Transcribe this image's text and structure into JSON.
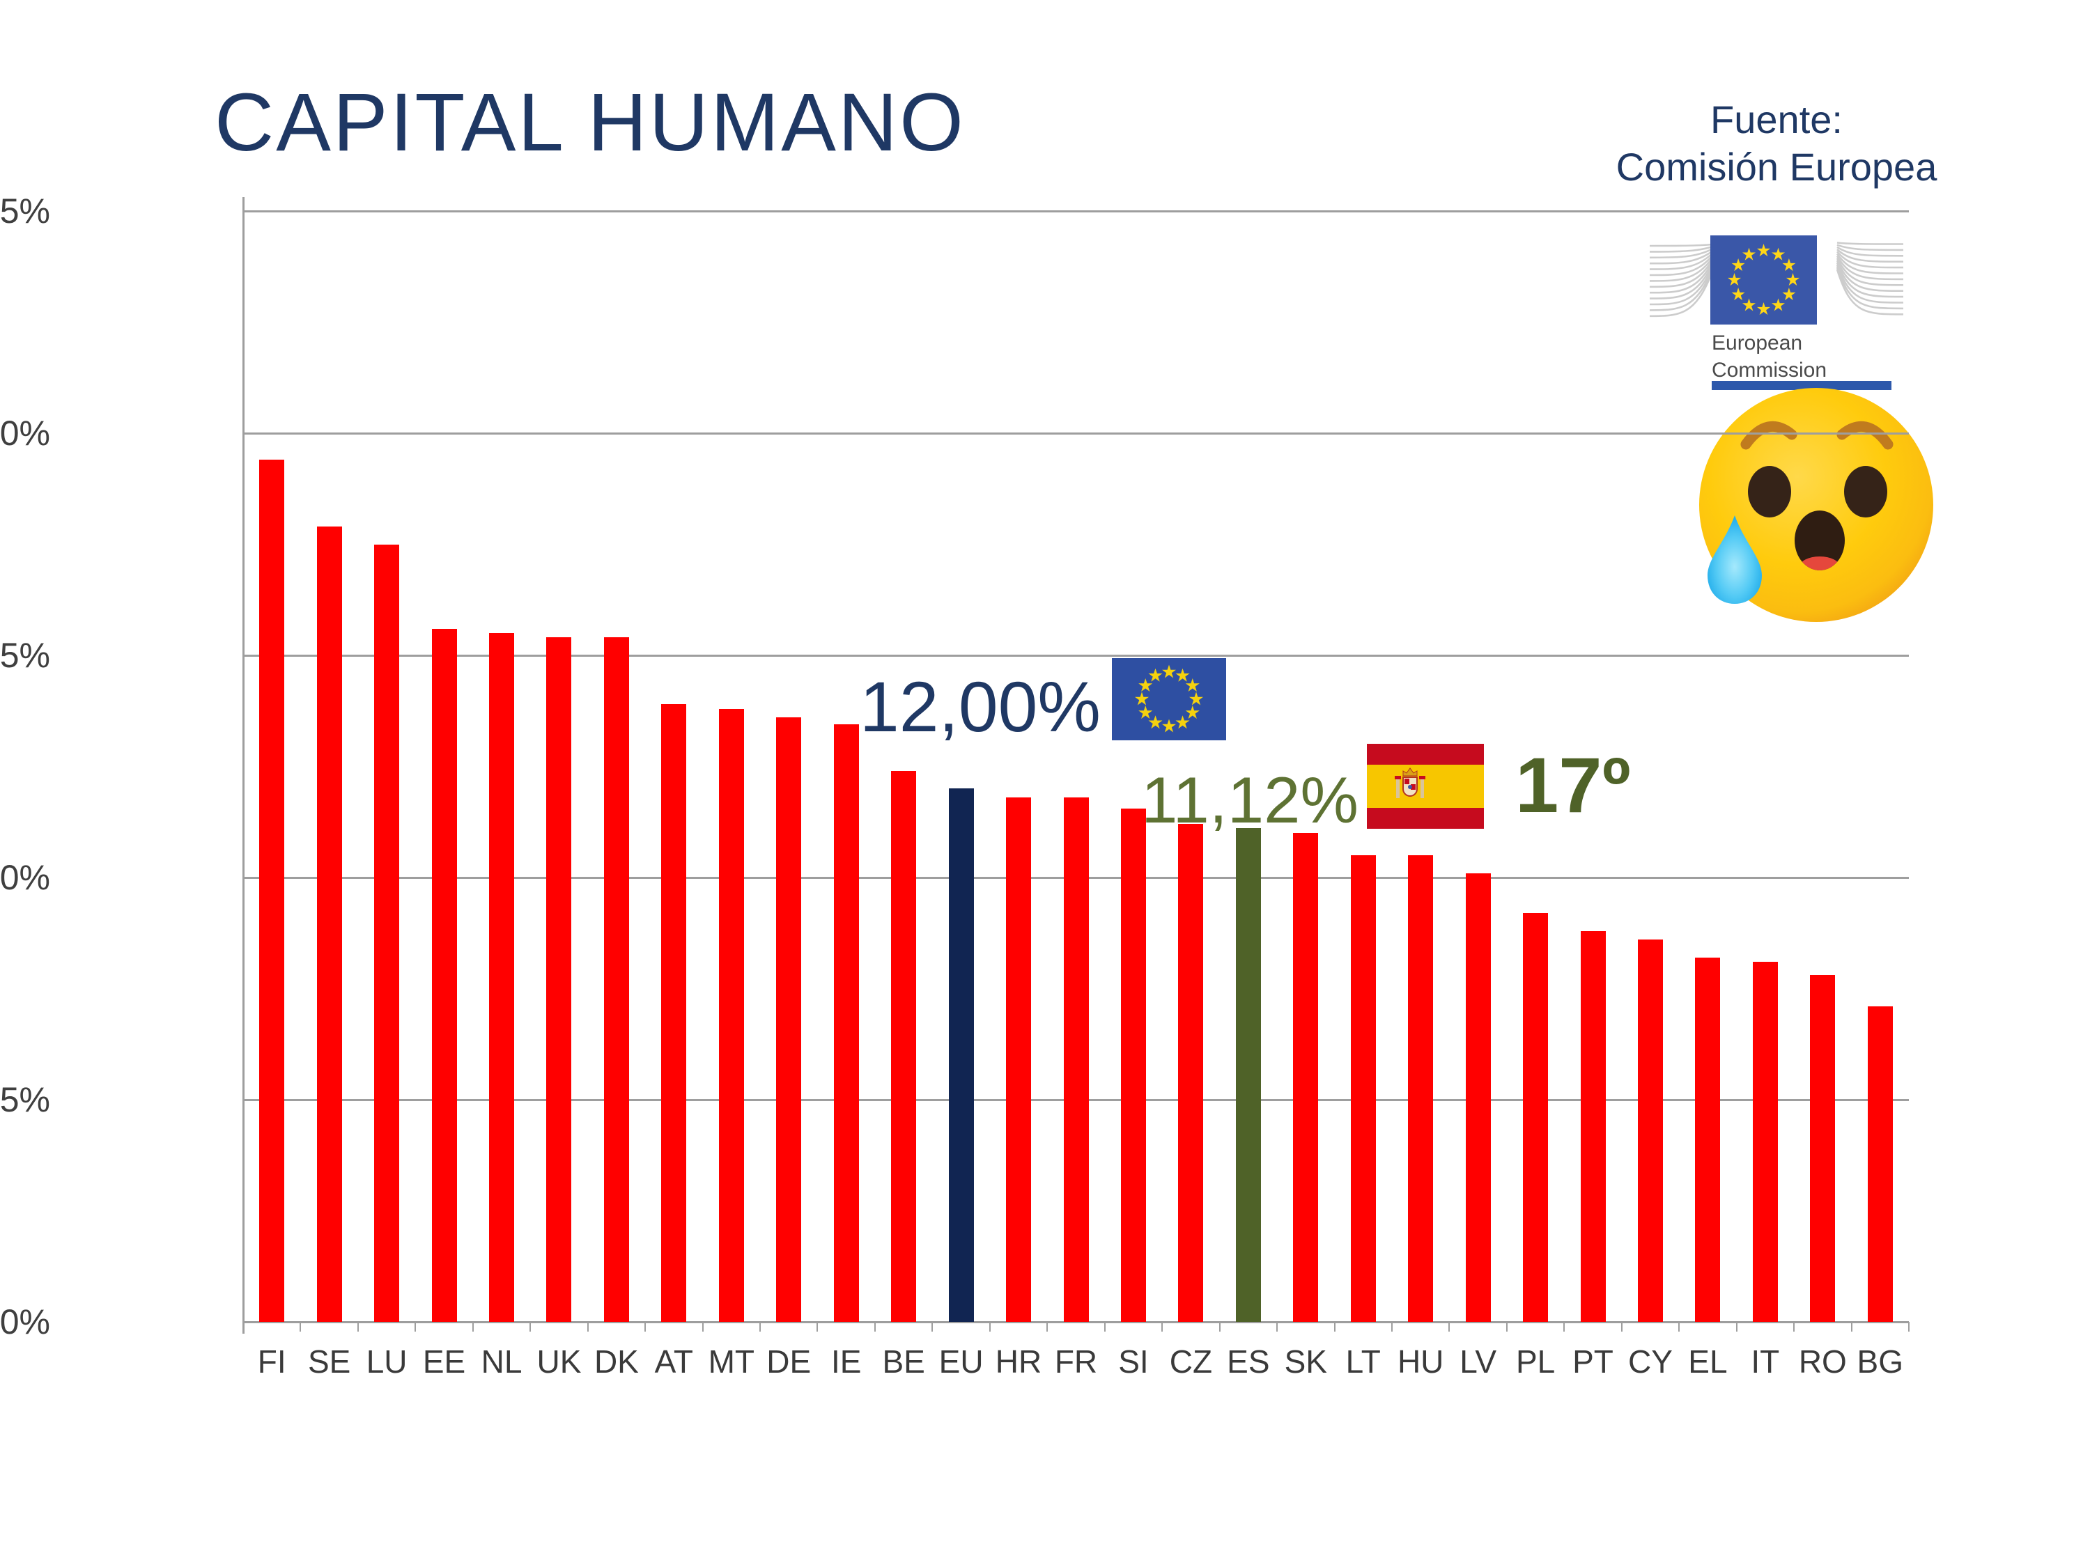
{
  "slide": {
    "title": "CAPITAL HUMANO",
    "source_line1": "Fuente:",
    "source_line2": "Comisión Europea"
  },
  "ec_logo": {
    "org_line1": "European",
    "org_line2": "Commission"
  },
  "emoji": {
    "name": "sad-but-relieved-face"
  },
  "annotations": {
    "eu_value": "12,00%",
    "es_value": "11,12%",
    "es_rank": "17º"
  },
  "colors": {
    "title_text": "#1F3864",
    "eu_label_text": "#1F3864",
    "es_label_text": "#5E7233",
    "bar_default": "#FF0000",
    "bar_eu": "#112552",
    "bar_es": "#4F6228",
    "gridline": "#9E9E9E",
    "axis_text": "#3F3F3F",
    "eu_flag_blue": "#2E4FA2",
    "eu_flag_star": "#F5D20E",
    "spain_red": "#C60B1E",
    "spain_yellow": "#F7C600",
    "ec_bar_blue": "#2D58AB"
  },
  "chart_data": {
    "type": "bar",
    "title": "CAPITAL HUMANO",
    "categories": [
      "FI",
      "SE",
      "LU",
      "EE",
      "NL",
      "UK",
      "DK",
      "AT",
      "MT",
      "DE",
      "IE",
      "BE",
      "EU",
      "HR",
      "FR",
      "SI",
      "CZ",
      "ES",
      "SK",
      "LT",
      "HU",
      "LV",
      "PL",
      "PT",
      "CY",
      "EL",
      "IT",
      "RO",
      "BG"
    ],
    "values": [
      19.4,
      17.9,
      17.5,
      15.6,
      15.5,
      15.4,
      15.4,
      13.9,
      13.8,
      13.6,
      13.45,
      12.4,
      12.0,
      11.8,
      11.8,
      11.55,
      11.2,
      11.12,
      11.0,
      10.5,
      10.5,
      10.1,
      9.2,
      8.8,
      8.6,
      8.2,
      8.1,
      7.8,
      7.1
    ],
    "default_bar_color": "#FF0000",
    "highlight_bars": {
      "EU": "#112552",
      "ES": "#4F6228"
    },
    "xlabel": "",
    "ylabel": "",
    "ylim": [
      0,
      25
    ],
    "ytick_step": 5,
    "ytick_suffix": "%",
    "grid": true,
    "legend": null,
    "annotations": [
      {
        "target": "EU",
        "text": "12,00%",
        "flag": "eu-flag"
      },
      {
        "target": "ES",
        "text": "11,12%",
        "flag": "spain-flag",
        "rank": "17º"
      }
    ]
  }
}
